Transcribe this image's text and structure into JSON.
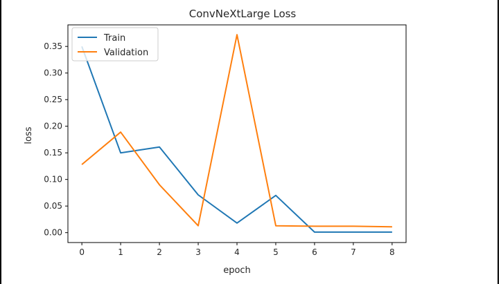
{
  "chart_data": {
    "type": "line",
    "title": "ConvNeXtLarge Loss",
    "xlabel": "epoch",
    "ylabel": "loss",
    "x": [
      0,
      1,
      2,
      3,
      4,
      5,
      6,
      7,
      8
    ],
    "xticks": [
      "0",
      "1",
      "2",
      "3",
      "4",
      "5",
      "6",
      "7",
      "8"
    ],
    "yticks": [
      "0.00",
      "0.05",
      "0.10",
      "0.15",
      "0.20",
      "0.25",
      "0.30",
      "0.35"
    ],
    "xlim": [
      -0.36,
      8.36
    ],
    "ylim": [
      -0.0186,
      0.3905
    ],
    "grid": false,
    "legend_position": "top-left",
    "series": [
      {
        "name": "Train",
        "color": "#1f77b4",
        "values": [
          0.35,
          0.15,
          0.161,
          0.071,
          0.018,
          0.07,
          0.001,
          0.001,
          0.001
        ]
      },
      {
        "name": "Validation",
        "color": "#ff7f0e",
        "values": [
          0.128,
          0.189,
          0.09,
          0.013,
          0.372,
          0.013,
          0.012,
          0.012,
          0.011
        ]
      }
    ]
  }
}
